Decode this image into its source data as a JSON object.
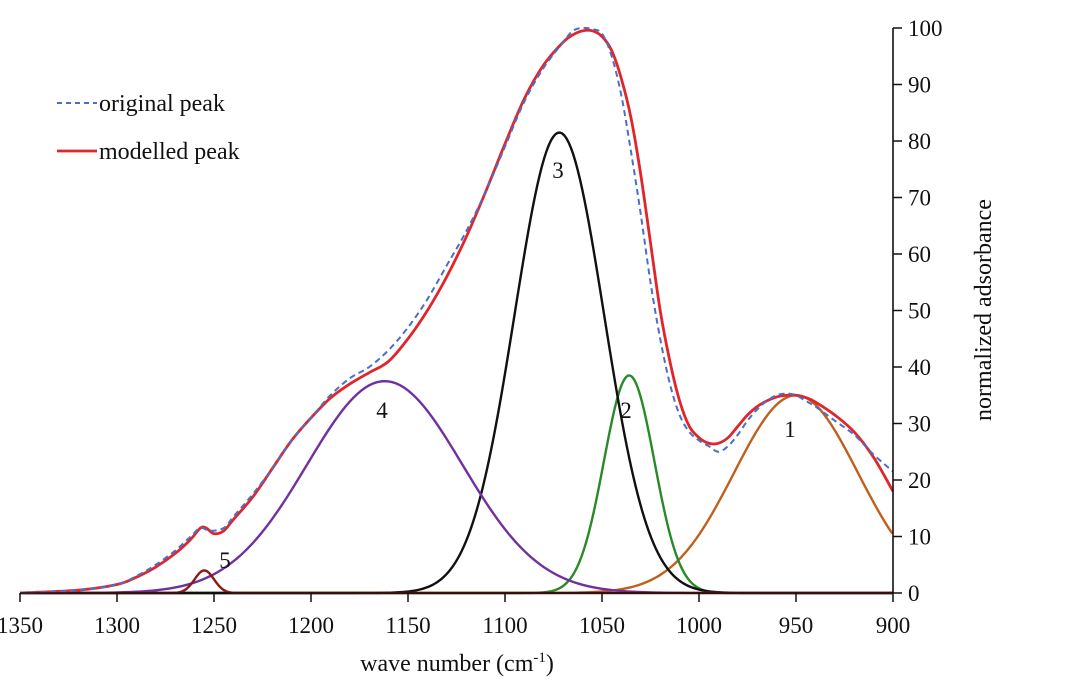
{
  "chart_data": {
    "type": "line",
    "title": "",
    "xlabel_main": "wave number (cm",
    "xlabel_sup": "-1",
    "xlabel_end": ")",
    "ylabel": "normalized adsorbance",
    "xlim": [
      1350,
      900
    ],
    "ylim": [
      0,
      100
    ],
    "x_ticks": [
      1350,
      1300,
      1250,
      1200,
      1150,
      1100,
      1050,
      1000,
      950,
      900
    ],
    "y_ticks": [
      0,
      10,
      20,
      30,
      40,
      50,
      60,
      70,
      80,
      90,
      100
    ],
    "x_tick_labels": [
      "1350",
      "1300",
      "1250",
      "1200",
      "1150",
      "1100",
      "1050",
      "1000",
      "950",
      "900"
    ],
    "y_tick_labels": [
      "0",
      "10",
      "20",
      "30",
      "40",
      "50",
      "60",
      "70",
      "80",
      "90",
      "100"
    ],
    "y_axis_side": "right",
    "grid": false,
    "legend": {
      "position": "top-left",
      "entries": [
        {
          "label": "original peak",
          "color": "#4a6fc9",
          "dash": true
        },
        {
          "label": "modelled peak",
          "color": "#e0262a",
          "dash": false
        }
      ]
    },
    "components": [
      {
        "label": "1",
        "center": 950,
        "height": 35,
        "width": 32,
        "color": "#c0601e"
      },
      {
        "label": "2",
        "center": 1036,
        "height": 38.5,
        "width": 13,
        "color": "#2a8a2a"
      },
      {
        "label": "3",
        "center": 1072,
        "height": 81.5,
        "width": 23,
        "color": "#111111"
      },
      {
        "label": "4",
        "center": 1162,
        "height": 37.5,
        "width": 40,
        "color": "#7030a0"
      },
      {
        "label": "5",
        "center": 1255,
        "height": 4,
        "width": 5,
        "color": "#8b1a1a"
      }
    ],
    "original_peak": {
      "x": [
        1350,
        1320,
        1300,
        1290,
        1280,
        1270,
        1262,
        1257,
        1252,
        1245,
        1240,
        1230,
        1220,
        1210,
        1200,
        1190,
        1180,
        1170,
        1160,
        1150,
        1140,
        1130,
        1120,
        1110,
        1100,
        1090,
        1080,
        1070,
        1065,
        1060,
        1055,
        1050,
        1045,
        1040,
        1035,
        1030,
        1025,
        1020,
        1015,
        1010,
        1005,
        1000,
        995,
        990,
        985,
        980,
        975,
        970,
        965,
        960,
        955,
        950,
        945,
        940,
        930,
        920,
        910,
        900
      ],
      "y": [
        0,
        0.5,
        1.5,
        3,
        5,
        7.5,
        10,
        11.5,
        11,
        11.5,
        13.5,
        17.5,
        22,
        27,
        31,
        35,
        38,
        40,
        43,
        47,
        52,
        58,
        64,
        71,
        79,
        87,
        93,
        97.5,
        99.5,
        100,
        99.8,
        99,
        95,
        88,
        78,
        67,
        55,
        45,
        37,
        31.5,
        28.5,
        27,
        26,
        25,
        26,
        28,
        30.5,
        32.5,
        34,
        35,
        35.3,
        35,
        34,
        33,
        30.5,
        28,
        24.5,
        21.5
      ]
    },
    "modelled_peak": {
      "x": [
        1350,
        1320,
        1300,
        1290,
        1280,
        1270,
        1262,
        1257,
        1254,
        1250,
        1245,
        1240,
        1230,
        1220,
        1210,
        1200,
        1190,
        1180,
        1170,
        1160,
        1150,
        1140,
        1130,
        1120,
        1110,
        1100,
        1090,
        1080,
        1070,
        1065,
        1060,
        1055,
        1050,
        1045,
        1040,
        1035,
        1030,
        1025,
        1020,
        1015,
        1010,
        1005,
        1000,
        995,
        990,
        985,
        980,
        975,
        970,
        965,
        960,
        955,
        950,
        945,
        940,
        930,
        920,
        910,
        900
      ],
      "y": [
        0,
        0.5,
        1.5,
        2.8,
        4.6,
        7,
        9.5,
        11.5,
        11.5,
        10.5,
        11,
        13,
        17,
        22,
        27,
        31,
        34.5,
        37,
        39,
        41,
        45,
        50,
        56,
        63,
        71,
        79.5,
        87.5,
        93.5,
        97.5,
        98.8,
        99.5,
        99.5,
        98.5,
        96,
        91,
        84,
        74,
        62,
        50,
        41,
        34,
        29.5,
        27.5,
        26.5,
        26.5,
        27.5,
        29.5,
        31.5,
        33,
        34,
        34.7,
        35,
        35,
        34.6,
        33.8,
        31.5,
        28.5,
        24,
        18
      ]
    }
  }
}
